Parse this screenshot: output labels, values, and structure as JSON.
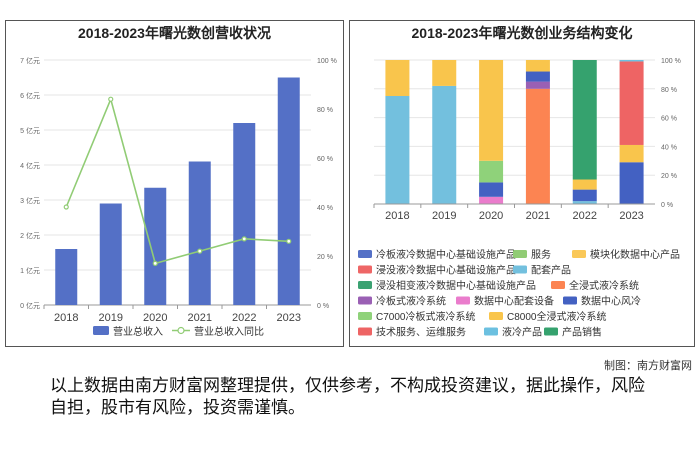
{
  "chart_data": [
    {
      "type": "bar",
      "title": "2018-2023年曙光数创营收状况",
      "categories": [
        "2018",
        "2019",
        "2020",
        "2021",
        "2022",
        "2023"
      ],
      "series": [
        {
          "name": "营业总收入",
          "type": "bar",
          "axis": "left",
          "color": "#5470c6",
          "values": [
            1.6,
            2.9,
            3.35,
            4.1,
            5.2,
            6.5
          ]
        },
        {
          "name": "营业总收入同比",
          "type": "line",
          "axis": "right",
          "color": "#91cc75",
          "values": [
            40,
            84,
            17,
            22,
            27,
            26
          ]
        }
      ],
      "y_left": {
        "ticks": [
          "0 亿元",
          "1 亿元",
          "2 亿元",
          "3 亿元",
          "4 亿元",
          "5 亿元",
          "6 亿元",
          "7 亿元"
        ],
        "ylim": [
          0,
          7
        ]
      },
      "y_right": {
        "ticks": [
          "0 %",
          "20 %",
          "40 %",
          "60 %",
          "80 %",
          "100 %"
        ],
        "ylim": [
          0,
          100
        ]
      },
      "legend_position": "bottom"
    },
    {
      "type": "bar",
      "stacked": "percent",
      "title": "2018-2023年曙光数创业务结构变化",
      "categories": [
        "2018",
        "2019",
        "2020",
        "2021",
        "2022",
        "2023"
      ],
      "y_right": {
        "ticks": [
          "0 %",
          "20 %",
          "40 %",
          "60 %",
          "80 %",
          "100 %"
        ],
        "ylim": [
          0,
          100
        ]
      },
      "series": [
        {
          "name": "冷板液冷数据中心基础设施产品",
          "color": "#5470c6",
          "values": [
            0,
            0,
            0,
            0,
            0,
            0
          ]
        },
        {
          "name": "服务",
          "color": "#91cc75",
          "values": [
            0,
            0,
            0,
            0,
            0,
            0
          ]
        },
        {
          "name": "模块化数据中心产品",
          "color": "#fac858",
          "values": [
            0,
            0,
            0,
            0,
            0,
            0
          ]
        },
        {
          "name": "浸没液冷数据中心基础设施产品",
          "color": "#ee6666",
          "values": [
            0,
            0,
            0,
            0,
            0,
            0
          ]
        },
        {
          "name": "配套产品",
          "color": "#73c0de",
          "values": [
            75,
            82,
            0,
            0,
            2,
            0
          ]
        },
        {
          "name": "浸没相变液冷数据中心基础设施产品",
          "color": "#3ba272",
          "values": [
            0,
            0,
            0,
            0,
            0,
            0
          ]
        },
        {
          "name": "全浸式液冷系统",
          "color": "#fc8452",
          "values": [
            0,
            0,
            0,
            80,
            0,
            0
          ]
        },
        {
          "name": "冷板式液冷系统",
          "color": "#9a60b4",
          "values": [
            0,
            0,
            0,
            5,
            0,
            0
          ]
        },
        {
          "name": "数据中心配套设备",
          "color": "#ea7ccc",
          "values": [
            0,
            0,
            5,
            0,
            0,
            0
          ]
        },
        {
          "name": "数据中心风冷",
          "color": "#4361c2",
          "values": [
            0,
            0,
            10,
            7,
            8,
            29
          ]
        },
        {
          "name": "C7000冷板式液冷系统",
          "color": "#8fd27a",
          "values": [
            0,
            0,
            15,
            0,
            0,
            0
          ]
        },
        {
          "name": "C8000全浸式液冷系统",
          "color": "#f9c54c",
          "values": [
            25,
            18,
            70,
            8,
            7,
            12
          ]
        },
        {
          "name": "技术服务、运维服务",
          "color": "#ee6464",
          "values": [
            0,
            0,
            0,
            0,
            0,
            58
          ]
        },
        {
          "name": "液冷产品",
          "color": "#6cc0e0",
          "values": [
            0,
            0,
            0,
            0,
            0,
            1
          ]
        },
        {
          "name": "产品销售",
          "color": "#35a26e",
          "values": [
            0,
            0,
            0,
            0,
            83,
            0
          ]
        }
      ],
      "legend_position": "bottom"
    }
  ],
  "credit": "制图：南方财富网",
  "disclaimer": "以上数据由南方财富网整理提供，仅供参考，不构成投资建议，据此操作，风险自担，股市有风险，投资需谨慎。"
}
